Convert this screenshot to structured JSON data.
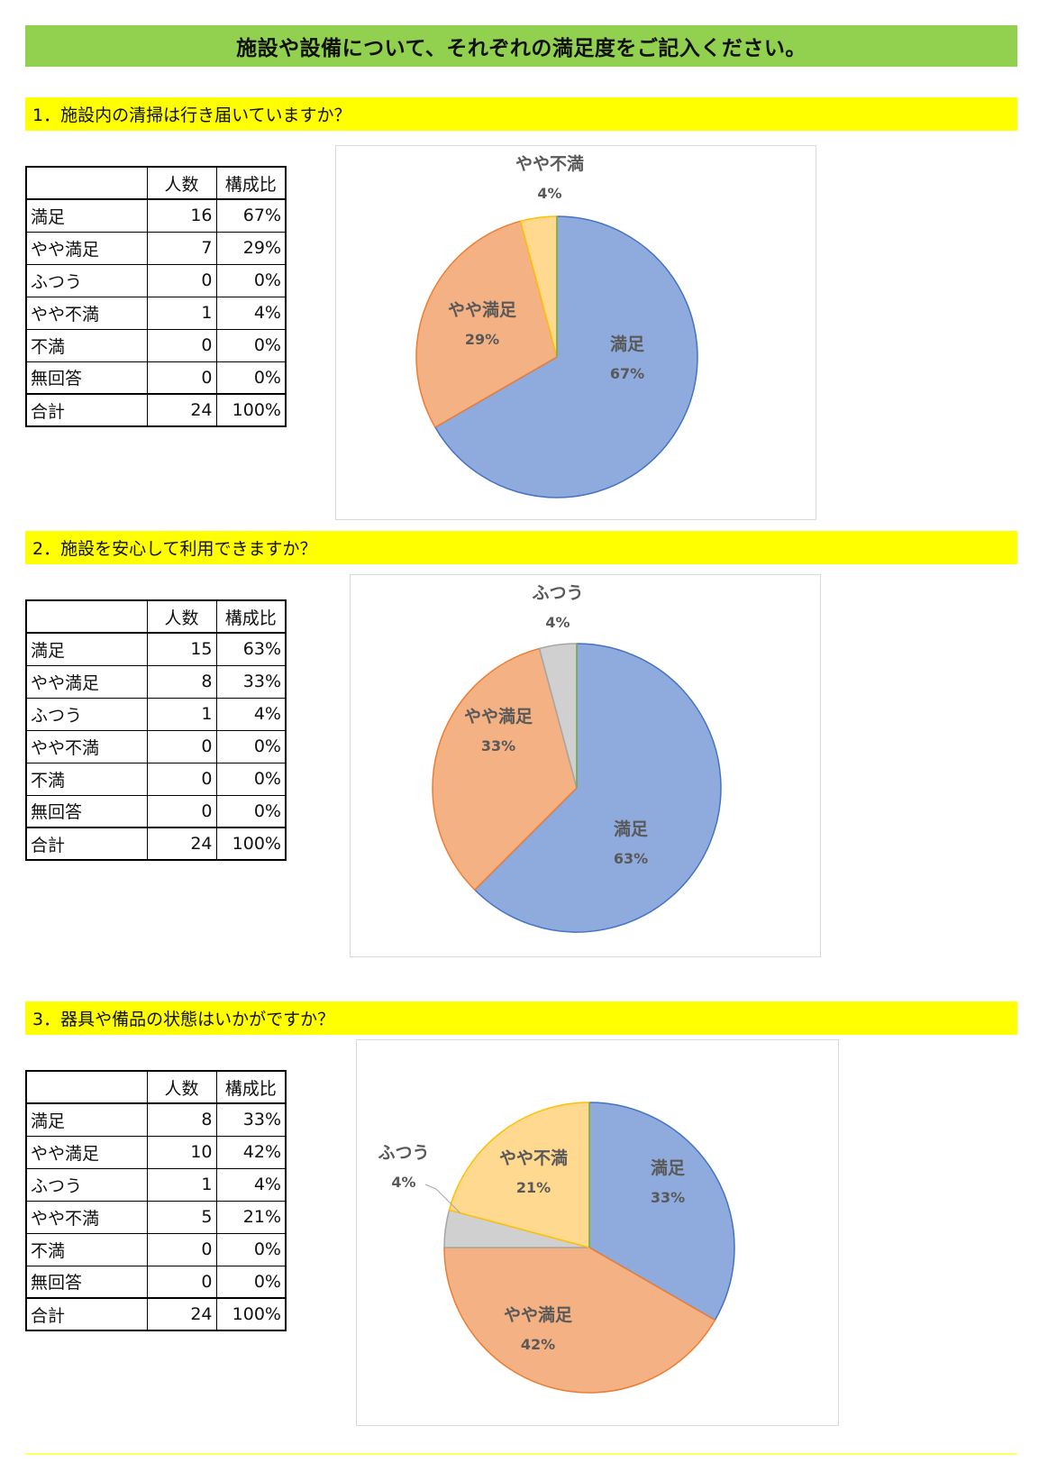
{
  "page_title": "施設や設備について、それぞれの満足度をご記入ください。",
  "table_headers": [
    "",
    "人数",
    "構成比"
  ],
  "colors": {
    "title_bar": "#92d050",
    "question_bar": "#ffff00",
    "満足": "#8faadc",
    "やや満足": "#f4b183",
    "ふつう": "#d0d0d0",
    "やや不満": "#ffd98f",
    "label_text": "#595959"
  },
  "questions": [
    {
      "title": "1．施設内の清掃は行き届いていますか？",
      "rows": [
        [
          "満足",
          "16",
          "67%"
        ],
        [
          "やや満足",
          "7",
          "29%"
        ],
        [
          "ふつう",
          "0",
          "0%"
        ],
        [
          "やや不満",
          "1",
          "4%"
        ],
        [
          "不満",
          "0",
          "0%"
        ],
        [
          "無回答",
          "0",
          "0%"
        ],
        [
          "合計",
          "24",
          "100%"
        ]
      ]
    },
    {
      "title": "2．施設を安心して利用できますか？",
      "rows": [
        [
          "満足",
          "15",
          "63%"
        ],
        [
          "やや満足",
          "8",
          "33%"
        ],
        [
          "ふつう",
          "1",
          "4%"
        ],
        [
          "やや不満",
          "0",
          "0%"
        ],
        [
          "不満",
          "0",
          "0%"
        ],
        [
          "無回答",
          "0",
          "0%"
        ],
        [
          "合計",
          "24",
          "100%"
        ]
      ]
    },
    {
      "title": "3．器具や備品の状態はいかがですか？",
      "rows": [
        [
          "満足",
          "8",
          "33%"
        ],
        [
          "やや満足",
          "10",
          "42%"
        ],
        [
          "ふつう",
          "1",
          "4%"
        ],
        [
          "やや不満",
          "5",
          "21%"
        ],
        [
          "不満",
          "0",
          "0%"
        ],
        [
          "無回答",
          "0",
          "0%"
        ],
        [
          "合計",
          "24",
          "100%"
        ]
      ]
    }
  ],
  "chart_data": [
    {
      "type": "pie",
      "slices": [
        {
          "label": "満足",
          "value": 16,
          "pct_label": "67%"
        },
        {
          "label": "やや満足",
          "value": 7,
          "pct_label": "29%"
        },
        {
          "label": "ふつう",
          "value": 0,
          "pct_label": "0%"
        },
        {
          "label": "やや不満",
          "value": 1,
          "pct_label": "4%"
        },
        {
          "label": "不満",
          "value": 0,
          "pct_label": "0%"
        },
        {
          "label": "無回答",
          "value": 0,
          "pct_label": "0%"
        }
      ]
    },
    {
      "type": "pie",
      "slices": [
        {
          "label": "満足",
          "value": 15,
          "pct_label": "63%"
        },
        {
          "label": "やや満足",
          "value": 8,
          "pct_label": "33%"
        },
        {
          "label": "ふつう",
          "value": 1,
          "pct_label": "4%"
        },
        {
          "label": "やや不満",
          "value": 0,
          "pct_label": "0%"
        },
        {
          "label": "不満",
          "value": 0,
          "pct_label": "0%"
        },
        {
          "label": "無回答",
          "value": 0,
          "pct_label": "0%"
        }
      ]
    },
    {
      "type": "pie",
      "slices": [
        {
          "label": "満足",
          "value": 8,
          "pct_label": "33%"
        },
        {
          "label": "やや満足",
          "value": 10,
          "pct_label": "42%"
        },
        {
          "label": "ふつう",
          "value": 1,
          "pct_label": "4%"
        },
        {
          "label": "やや不満",
          "value": 5,
          "pct_label": "21%"
        },
        {
          "label": "不満",
          "value": 0,
          "pct_label": "0%"
        },
        {
          "label": "無回答",
          "value": 0,
          "pct_label": "0%"
        }
      ]
    }
  ]
}
